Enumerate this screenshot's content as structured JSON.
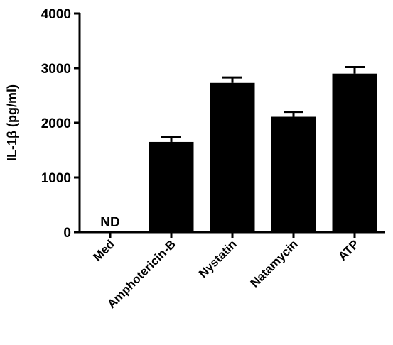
{
  "chart_data": {
    "type": "bar",
    "title": "",
    "xlabel": "",
    "ylabel": "IL-1β (pg/ml)",
    "ylim": [
      0,
      4000
    ],
    "yticks": [
      "0",
      "1000",
      "2000",
      "3000",
      "4000"
    ],
    "grid": false,
    "categories": [
      "Med",
      "Amphotericin-B",
      "Nystatin",
      "Natamycin",
      "ATP"
    ],
    "values": [
      null,
      1650,
      2730,
      2110,
      2900
    ],
    "errors": [
      null,
      90,
      100,
      90,
      120
    ],
    "annotations": [
      {
        "category": "Med",
        "text": "ND"
      }
    ],
    "colors": {
      "bar": "#000000",
      "axis": "#000000",
      "background": "#ffffff"
    }
  }
}
